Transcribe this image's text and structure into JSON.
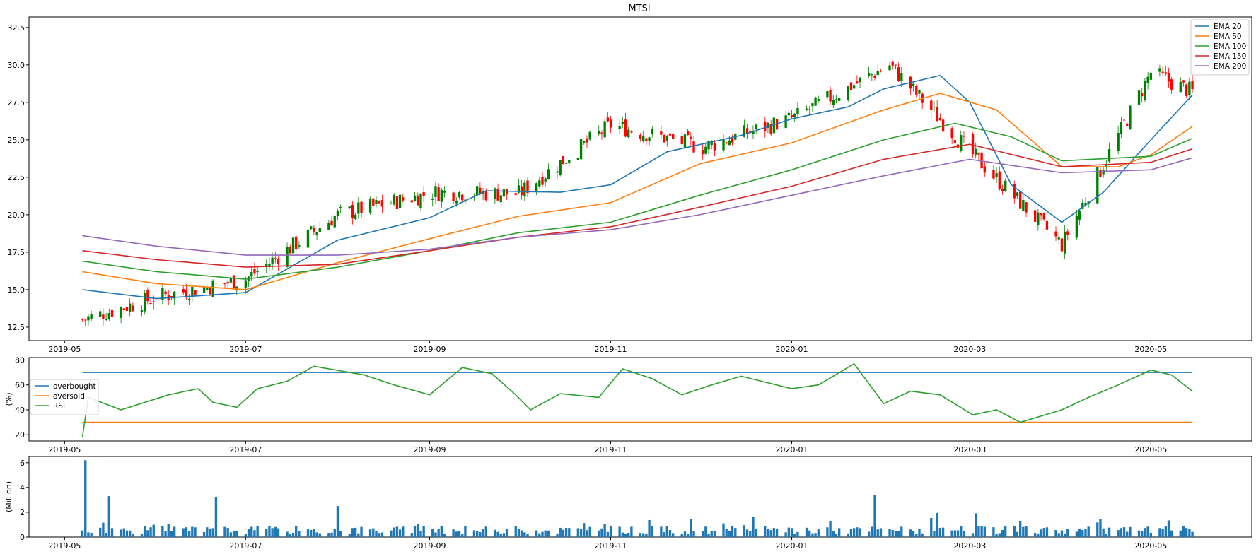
{
  "chart_data": [
    {
      "type": "candlestick",
      "title": "MTSI",
      "ylabel": "",
      "xlabel": "",
      "x_range": [
        "2019-04-19",
        "2020-06-04"
      ],
      "ylim": [
        11.6,
        33.2
      ],
      "y_ticks": [
        12.5,
        15.0,
        17.5,
        20.0,
        22.5,
        25.0,
        27.5,
        30.0,
        32.5
      ],
      "y_tick_labels": [
        "12.5",
        "15.0",
        "17.5",
        "20.0",
        "22.5",
        "25.0",
        "27.5",
        "30.0",
        "32.5"
      ],
      "x_ticks": [
        "2019-05-01",
        "2019-07-01",
        "2019-09-01",
        "2019-11-01",
        "2020-01-01",
        "2020-03-01",
        "2020-05-01"
      ],
      "x_tick_labels": [
        "2019-05",
        "2019-07",
        "2019-09",
        "2019-11",
        "2020-01",
        "2020-03",
        "2020-05"
      ],
      "up_color": "#008000",
      "down_color": "#ff0000",
      "legend_position": "top-right",
      "candles_monthly_close": {
        "dates": [
          "2019-05-07",
          "2019-06-03",
          "2019-07-01",
          "2019-08-01",
          "2019-09-03",
          "2019-10-01",
          "2019-11-01",
          "2019-12-02",
          "2020-01-02",
          "2020-02-03",
          "2020-03-02",
          "2020-04-01",
          "2020-05-01",
          "2020-05-15"
        ],
        "close": [
          13.0,
          14.6,
          15.7,
          20.0,
          21.5,
          21.4,
          26.0,
          24.5,
          26.5,
          30.0,
          24.0,
          18.0,
          29.5,
          28.2
        ]
      },
      "series": [
        {
          "name": "EMA 20",
          "color": "#1f77b4",
          "points": [
            [
              "2019-05-07",
              15.0
            ],
            [
              "2019-06-01",
              14.4
            ],
            [
              "2019-07-01",
              14.8
            ],
            [
              "2019-08-01",
              18.3
            ],
            [
              "2019-09-01",
              19.8
            ],
            [
              "2019-09-20",
              21.6
            ],
            [
              "2019-10-15",
              21.5
            ],
            [
              "2019-11-01",
              22.0
            ],
            [
              "2019-11-20",
              24.2
            ],
            [
              "2019-12-15",
              25.3
            ],
            [
              "2020-01-01",
              26.4
            ],
            [
              "2020-01-20",
              27.2
            ],
            [
              "2020-02-01",
              28.4
            ],
            [
              "2020-02-20",
              29.3
            ],
            [
              "2020-03-01",
              27.5
            ],
            [
              "2020-03-15",
              22.0
            ],
            [
              "2020-04-01",
              19.5
            ],
            [
              "2020-04-15",
              21.5
            ],
            [
              "2020-05-01",
              25.0
            ],
            [
              "2020-05-15",
              28.0
            ]
          ]
        },
        {
          "name": "EMA 50",
          "color": "#ff7f0e",
          "points": [
            [
              "2019-05-07",
              16.2
            ],
            [
              "2019-06-01",
              15.4
            ],
            [
              "2019-07-01",
              15.0
            ],
            [
              "2019-08-01",
              16.8
            ],
            [
              "2019-09-01",
              18.4
            ],
            [
              "2019-10-01",
              19.9
            ],
            [
              "2019-11-01",
              20.8
            ],
            [
              "2019-12-01",
              23.4
            ],
            [
              "2020-01-01",
              24.8
            ],
            [
              "2020-02-01",
              27.0
            ],
            [
              "2020-02-20",
              28.1
            ],
            [
              "2020-03-10",
              27.0
            ],
            [
              "2020-04-01",
              23.2
            ],
            [
              "2020-04-20",
              23.2
            ],
            [
              "2020-05-01",
              24.0
            ],
            [
              "2020-05-15",
              25.9
            ]
          ]
        },
        {
          "name": "EMA 100",
          "color": "#2ca02c",
          "points": [
            [
              "2019-05-07",
              16.9
            ],
            [
              "2019-06-01",
              16.2
            ],
            [
              "2019-07-01",
              15.7
            ],
            [
              "2019-08-01",
              16.5
            ],
            [
              "2019-09-01",
              17.6
            ],
            [
              "2019-10-01",
              18.8
            ],
            [
              "2019-11-01",
              19.5
            ],
            [
              "2019-12-01",
              21.3
            ],
            [
              "2020-01-01",
              23.0
            ],
            [
              "2020-02-01",
              25.0
            ],
            [
              "2020-02-25",
              26.1
            ],
            [
              "2020-03-15",
              25.2
            ],
            [
              "2020-04-01",
              23.6
            ],
            [
              "2020-05-01",
              23.9
            ],
            [
              "2020-05-15",
              25.1
            ]
          ]
        },
        {
          "name": "EMA 150",
          "color": "#d62728",
          "points": [
            [
              "2019-05-07",
              17.6
            ],
            [
              "2019-06-01",
              17.0
            ],
            [
              "2019-07-01",
              16.5
            ],
            [
              "2019-08-01",
              16.7
            ],
            [
              "2019-09-01",
              17.6
            ],
            [
              "2019-10-01",
              18.5
            ],
            [
              "2019-11-01",
              19.2
            ],
            [
              "2019-12-01",
              20.5
            ],
            [
              "2020-01-01",
              21.9
            ],
            [
              "2020-02-01",
              23.7
            ],
            [
              "2020-03-01",
              24.7
            ],
            [
              "2020-04-01",
              23.2
            ],
            [
              "2020-05-01",
              23.5
            ],
            [
              "2020-05-15",
              24.4
            ]
          ]
        },
        {
          "name": "EMA 200",
          "color": "#9467bd",
          "points": [
            [
              "2019-05-07",
              18.6
            ],
            [
              "2019-06-01",
              17.9
            ],
            [
              "2019-07-01",
              17.3
            ],
            [
              "2019-08-01",
              17.3
            ],
            [
              "2019-09-01",
              17.7
            ],
            [
              "2019-10-01",
              18.5
            ],
            [
              "2019-11-01",
              19.0
            ],
            [
              "2019-12-01",
              20.0
            ],
            [
              "2020-01-01",
              21.3
            ],
            [
              "2020-02-01",
              22.6
            ],
            [
              "2020-03-01",
              23.7
            ],
            [
              "2020-04-01",
              22.8
            ],
            [
              "2020-05-01",
              23.0
            ],
            [
              "2020-05-15",
              23.8
            ]
          ]
        }
      ]
    },
    {
      "type": "line",
      "title": "",
      "xlabel": "",
      "ylabel": "(%)",
      "x_range": [
        "2019-04-19",
        "2020-06-04"
      ],
      "ylim": [
        15,
        82
      ],
      "y_ticks": [
        20,
        40,
        60,
        80
      ],
      "y_tick_labels": [
        "20",
        "40",
        "60",
        "80"
      ],
      "x_ticks": [
        "2019-05-01",
        "2019-07-01",
        "2019-09-01",
        "2019-11-01",
        "2020-01-01",
        "2020-03-01",
        "2020-05-01"
      ],
      "x_tick_labels": [
        "2019-05",
        "2019-07",
        "2019-09",
        "2019-11",
        "2020-01",
        "2020-03",
        "2020-05"
      ],
      "legend_position": "center-left",
      "series": [
        {
          "name": "overbought",
          "color": "#1f77b4",
          "points": [
            [
              "2019-05-07",
              70
            ],
            [
              "2020-05-15",
              70
            ]
          ]
        },
        {
          "name": "oversold",
          "color": "#ff7f0e",
          "points": [
            [
              "2019-05-07",
              30
            ],
            [
              "2020-05-15",
              30
            ]
          ]
        },
        {
          "name": "RSI",
          "color": "#2ca02c",
          "points": [
            [
              "2019-05-07",
              18
            ],
            [
              "2019-05-09",
              50
            ],
            [
              "2019-05-20",
              40
            ],
            [
              "2019-06-05",
              52
            ],
            [
              "2019-06-15",
              57
            ],
            [
              "2019-06-20",
              46
            ],
            [
              "2019-06-28",
              42
            ],
            [
              "2019-07-05",
              57
            ],
            [
              "2019-07-15",
              63
            ],
            [
              "2019-07-24",
              75
            ],
            [
              "2019-08-10",
              68
            ],
            [
              "2019-08-20",
              60
            ],
            [
              "2019-09-01",
              52
            ],
            [
              "2019-09-12",
              74
            ],
            [
              "2019-09-22",
              69
            ],
            [
              "2019-09-30",
              52
            ],
            [
              "2019-10-05",
              40
            ],
            [
              "2019-10-15",
              53
            ],
            [
              "2019-10-28",
              50
            ],
            [
              "2019-11-05",
              73
            ],
            [
              "2019-11-15",
              65
            ],
            [
              "2019-11-25",
              52
            ],
            [
              "2019-12-05",
              60
            ],
            [
              "2019-12-15",
              67
            ],
            [
              "2020-01-01",
              57
            ],
            [
              "2020-01-10",
              60
            ],
            [
              "2020-01-22",
              77
            ],
            [
              "2020-02-01",
              45
            ],
            [
              "2020-02-10",
              55
            ],
            [
              "2020-02-20",
              52
            ],
            [
              "2020-03-02",
              36
            ],
            [
              "2020-03-10",
              40
            ],
            [
              "2020-03-18",
              30
            ],
            [
              "2020-04-01",
              40
            ],
            [
              "2020-04-10",
              50
            ],
            [
              "2020-04-20",
              60
            ],
            [
              "2020-05-01",
              72
            ],
            [
              "2020-05-08",
              68
            ],
            [
              "2020-05-15",
              55
            ]
          ]
        }
      ]
    },
    {
      "type": "bar",
      "title": "",
      "xlabel": "",
      "ylabel": "(Million)",
      "x_range": [
        "2019-04-19",
        "2020-06-04"
      ],
      "ylim": [
        0,
        6.5
      ],
      "y_ticks": [
        0,
        2,
        4,
        6
      ],
      "y_tick_labels": [
        "0",
        "2",
        "4",
        "6"
      ],
      "x_ticks": [
        "2019-05-01",
        "2019-07-01",
        "2019-09-01",
        "2019-11-01",
        "2020-01-01",
        "2020-03-01",
        "2020-05-01"
      ],
      "x_tick_labels": [
        "2019-05",
        "2019-07",
        "2019-09",
        "2019-11",
        "2020-01",
        "2020-03",
        "2020-05"
      ],
      "color": "#1f77b4",
      "notable_values": [
        [
          "2019-05-08",
          6.2
        ],
        [
          "2019-05-16",
          3.3
        ],
        [
          "2019-06-21",
          3.2
        ],
        [
          "2019-08-01",
          2.5
        ],
        [
          "2020-01-29",
          3.4
        ]
      ],
      "typical_level": 0.6
    }
  ]
}
